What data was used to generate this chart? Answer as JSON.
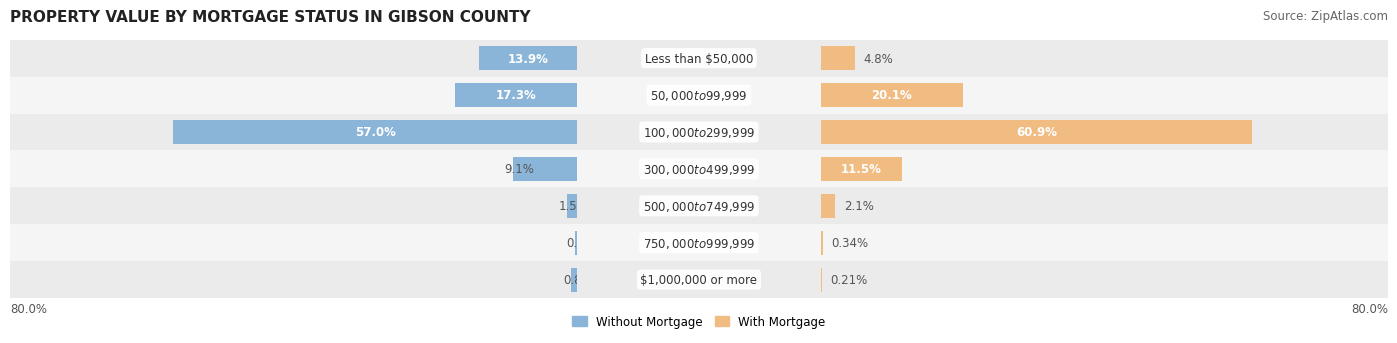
{
  "title": "PROPERTY VALUE BY MORTGAGE STATUS IN GIBSON COUNTY",
  "source": "Source: ZipAtlas.com",
  "categories": [
    "Less than $50,000",
    "$50,000 to $99,999",
    "$100,000 to $299,999",
    "$300,000 to $499,999",
    "$500,000 to $749,999",
    "$750,000 to $999,999",
    "$1,000,000 or more"
  ],
  "without_mortgage": [
    13.9,
    17.3,
    57.0,
    9.1,
    1.5,
    0.38,
    0.85
  ],
  "with_mortgage": [
    4.8,
    20.1,
    60.9,
    11.5,
    2.1,
    0.34,
    0.21
  ],
  "color_without": "#8ab4d8",
  "color_with": "#f0bc82",
  "bar_row_bg_odd": "#e8e8e8",
  "bar_row_bg_even": "#f0f0f0",
  "axis_max": 80.0,
  "legend_labels": [
    "Without Mortgage",
    "With Mortgage"
  ],
  "title_fontsize": 11,
  "source_fontsize": 8.5,
  "label_fontsize": 8.5,
  "cat_fontsize": 8.5,
  "bar_height": 0.65
}
